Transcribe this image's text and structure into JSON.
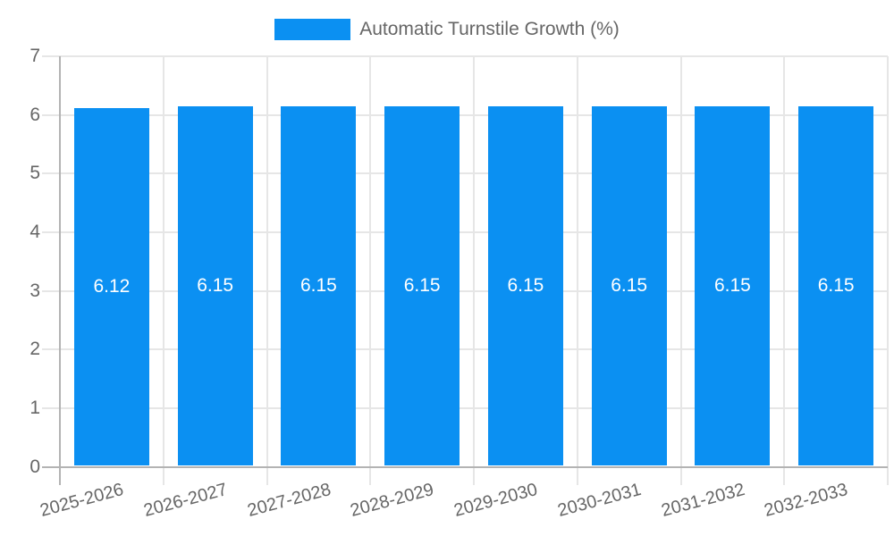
{
  "legend": {
    "label": "Automatic Turnstile Growth (%)"
  },
  "chart_data": {
    "type": "bar",
    "title": "Automatic Turnstile Growth (%)",
    "categories": [
      "2025-2026",
      "2026-2027",
      "2027-2028",
      "2028-2029",
      "2029-2030",
      "2030-2031",
      "2031-2032",
      "2032-2033"
    ],
    "values": [
      6.12,
      6.15,
      6.15,
      6.15,
      6.15,
      6.15,
      6.15,
      6.15
    ],
    "value_labels": [
      "6.12",
      "6.15",
      "6.15",
      "6.15",
      "6.15",
      "6.15",
      "6.15",
      "6.15"
    ],
    "xlabel": "",
    "ylabel": "",
    "ylim": [
      0,
      7
    ],
    "yticks": [
      0,
      1,
      2,
      3,
      4,
      5,
      6,
      7
    ],
    "grid": true,
    "legend_position": "top-center",
    "x_label_rotation_deg": -15,
    "bar_color": "#0b90f2",
    "value_label_color": "#ffffff",
    "tick_label_color": "#666666",
    "gridline_color": "#e6e6e6",
    "axis_line_color": "#b3b3b3"
  }
}
